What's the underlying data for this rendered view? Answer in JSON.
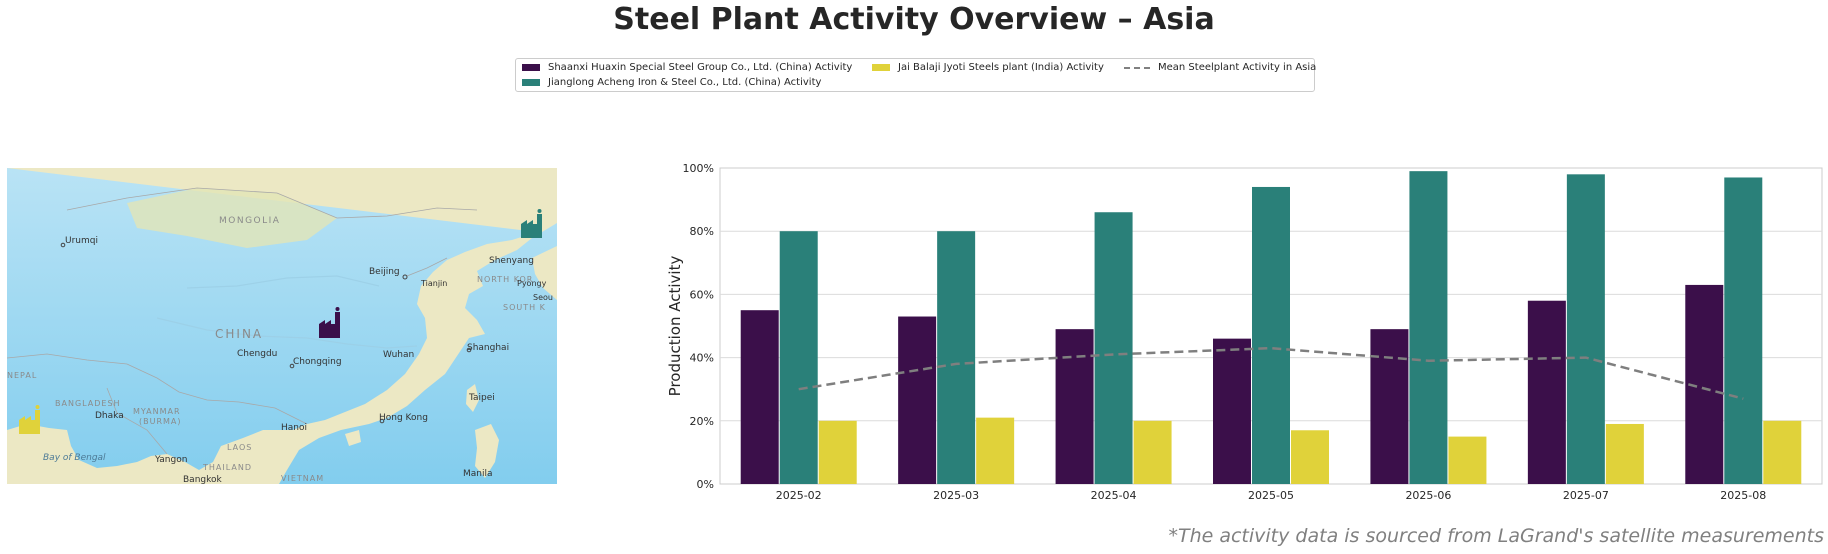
{
  "title": "Steel Plant Activity Overview – Asia",
  "footnote": "*The activity data is sourced from LaGrand's satellite measurements",
  "legend": {
    "shaanxi": "Shaanxi Huaxin Special Steel Group Co., Ltd. (China) Activity",
    "jianglong": "Jianglong Acheng Iron & Steel Co., Ltd. (China) Activity",
    "jai": "Jai Balaji Jyoti Steels plant (India) Activity",
    "mean": "Mean Steelplant Activity in Asia"
  },
  "colors": {
    "shaanxi": "#3b0f4a",
    "jianglong": "#2a8079",
    "jai": "#e0d23a",
    "mean": "#7f7f7f"
  },
  "map": {
    "labels": {
      "mongolia": "MONGOLIA",
      "china": "CHINA",
      "urumqi": "Urumqi",
      "shenyang": "Shenyang",
      "beijing": "Beijing",
      "tianjin": "Tianjin",
      "north_korea": "NORTH KOR",
      "pyongyang": "Pyongy",
      "seoul": "Seou",
      "south_korea": "SOUTH K",
      "chengdu": "Chengdu",
      "chongqing": "Chongqing",
      "wuhan": "Wuhan",
      "shanghai": "Shanghai",
      "taipei": "Taipei",
      "nepal": "NEPAL",
      "bangladesh": "BANGLADESH",
      "dhaka": "Dhaka",
      "myanmar": "MYANMAR",
      "burma": "(BURMA)",
      "hanoi": "Hanoi",
      "hong_kong": "Hong Kong",
      "laos": "LAOS",
      "yangon": "Yangon",
      "bay_of_bengal": "Bay of Bengal",
      "thailand": "THAILAND",
      "bangkok": "Bangkok",
      "vietnam": "VIETNAM",
      "manila": "Manila"
    }
  },
  "chart_data": {
    "type": "bar",
    "categories": [
      "2025-02",
      "2025-03",
      "2025-04",
      "2025-05",
      "2025-06",
      "2025-07",
      "2025-08"
    ],
    "series": [
      {
        "name": "Shaanxi Huaxin Special Steel Group Co., Ltd. (China) Activity",
        "color": "#3b0f4a",
        "values": [
          55,
          53,
          49,
          46,
          49,
          58,
          63
        ]
      },
      {
        "name": "Jianglong Acheng Iron & Steel Co., Ltd. (China) Activity",
        "color": "#2a8079",
        "values": [
          80,
          80,
          86,
          94,
          99,
          98,
          97
        ]
      },
      {
        "name": "Jai Balaji Jyoti Steels plant (India) Activity",
        "color": "#e0d23a",
        "values": [
          20,
          21,
          20,
          17,
          15,
          19,
          20
        ]
      }
    ],
    "line_series": {
      "name": "Mean Steelplant Activity in Asia",
      "type": "line",
      "style": "dashed",
      "color": "#7f7f7f",
      "values": [
        30,
        38,
        41,
        43,
        39,
        40,
        27
      ]
    },
    "ylabel": "Production Activity",
    "ylim": [
      0,
      100
    ],
    "yticks": [
      "0%",
      "20%",
      "40%",
      "60%",
      "80%",
      "100%"
    ],
    "grid": "horizontal",
    "legend_position": "top-center"
  }
}
